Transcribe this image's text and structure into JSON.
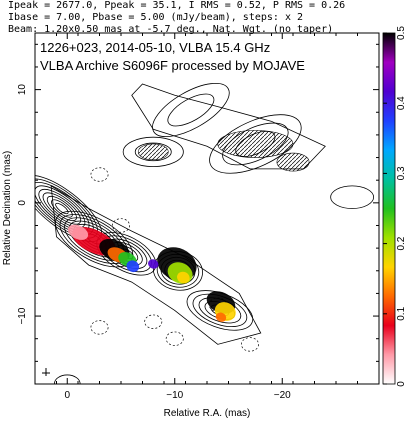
{
  "header": {
    "line1": "Ipeak = 2677.0, Ppeak = 35.1, I RMS = 0.52, P RMS = 0.26",
    "line2": "Ibase = 7.00, Pbase = 5.00 (mJy/beam), steps: x 2",
    "line3": "Beam: 1.20x0.50 mas at -5.7 deg., Nat. Wgt. (no taper)"
  },
  "annotation": {
    "line1": "1226+023, 2014-05-10, VLBA 15.4 GHz",
    "line2": "VLBA Archive S6096F processed by MOJAVE"
  },
  "chart_data": {
    "type": "contour map with polarization color overlay",
    "xlabel": "Relative R.A. (mas)",
    "ylabel": "Relative Decination (mas)",
    "xlim": [
      3,
      -29
    ],
    "ylim": [
      -16,
      15
    ],
    "x_axis_reversed": true,
    "x_ticks": [
      0,
      -10,
      -20
    ],
    "x_tick_labels": [
      "0",
      "−10",
      "−20"
    ],
    "y_ticks": [
      10,
      0,
      -10
    ],
    "y_tick_labels": [
      "10",
      "0",
      "−10"
    ],
    "colorbar": {
      "min": 0,
      "max": 0.5,
      "ticks": [
        0,
        0.1,
        0.2,
        0.3,
        0.4,
        0.5
      ],
      "tick_labels": [
        "0",
        "0.1",
        "0.2",
        "0.3",
        "0.4",
        "0.5"
      ],
      "colormap": [
        "#ffffff",
        "#ff9aa8",
        "#e8001c",
        "#ff6a00",
        "#ffd400",
        "#a0e000",
        "#20c020",
        "#00c0a0",
        "#00a8ff",
        "#2040ff",
        "#5000d0",
        "#a000c0",
        "#000000"
      ]
    },
    "contours": {
      "base_mJy_per_beam": 7.0,
      "step_factor": 2,
      "levels_relative": [
        1,
        2,
        4,
        8,
        16,
        32,
        64,
        128,
        256
      ]
    },
    "core_position": [
      0,
      0
    ],
    "jet_direction": "south-east to north-west, extending to RA -25 mas"
  }
}
